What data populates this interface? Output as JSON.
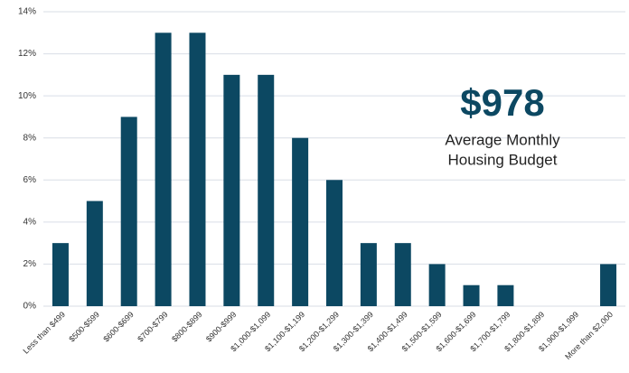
{
  "chart_data": {
    "type": "bar",
    "categories": [
      "Less than $499",
      "$500-$599",
      "$600-$699",
      "$700-$799",
      "$800-$899",
      "$900-$999",
      "$1,000-$1,099",
      "$1,100-$1,199",
      "$1,200-$1,299",
      "$1,300-$1,399",
      "$1,400-$1,499",
      "$1,500-$1,599",
      "$1,600-$1,699",
      "$1,700-$1,799",
      "$1,800-$1,899",
      "$1,900-$1,999",
      "More than $2,000"
    ],
    "values": [
      3,
      5,
      9,
      13,
      13,
      11,
      11,
      8,
      6,
      3,
      3,
      2,
      1,
      1,
      0,
      0,
      2
    ],
    "color": "#0c4862",
    "ylim": [
      0,
      14
    ],
    "yticks": [
      {
        "value": 0,
        "label": "0%"
      },
      {
        "value": 2,
        "label": "2%"
      },
      {
        "value": 4,
        "label": "4%"
      },
      {
        "value": 6,
        "label": "6%"
      },
      {
        "value": 8,
        "label": "8%"
      },
      {
        "value": 10,
        "label": "10%"
      },
      {
        "value": 12,
        "label": "12%"
      },
      {
        "value": 14,
        "label": "14%"
      }
    ],
    "grid": true,
    "annotation": {
      "headline": "$978",
      "lines": [
        "Average Monthly",
        "Housing Budget"
      ]
    }
  }
}
